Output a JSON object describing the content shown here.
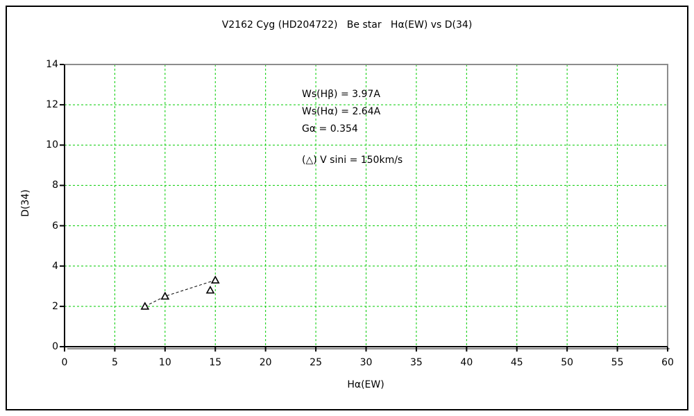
{
  "figure": {
    "title": "V2162 Cyg (HD204722)   Be star   Hα(EW) vs D(34)"
  },
  "annotations": {
    "line1": "Ws(Hβ) = 3.97A",
    "line2": "Ws(Hα) = 2.64A",
    "line3": "Gα = 0.354",
    "legend": "(△) V sini = 150km/s"
  },
  "chart_data": {
    "type": "scatter",
    "title": "V2162 Cyg (HD204722)   Be star   Hα(EW) vs D(34)",
    "xlabel": "Hα(EW)",
    "ylabel": "D(34)",
    "xlim": [
      0,
      60
    ],
    "ylim": [
      0,
      14
    ],
    "xticks": [
      0,
      5,
      10,
      15,
      20,
      25,
      30,
      35,
      40,
      45,
      50,
      55,
      60
    ],
    "yticks": [
      0,
      2,
      4,
      6,
      8,
      10,
      12,
      14
    ],
    "grid": true,
    "legend_position": "inside-top",
    "series": [
      {
        "name": "V sini = 150km/s (connected)",
        "marker": "open-triangle",
        "line": "dashed",
        "points": [
          [
            8,
            2.0
          ],
          [
            10,
            2.5
          ],
          [
            15,
            3.3
          ]
        ]
      },
      {
        "name": "V sini = 150km/s (isolated)",
        "marker": "open-triangle",
        "line": "none",
        "points": [
          [
            14.5,
            2.8
          ]
        ]
      }
    ],
    "colors": {
      "grid": "#00CC00",
      "axis": "#000000",
      "plot_border": "#8C8C8C",
      "line": "#000000",
      "marker_stroke": "#000000",
      "marker_fill": "#FFFFFF"
    }
  }
}
